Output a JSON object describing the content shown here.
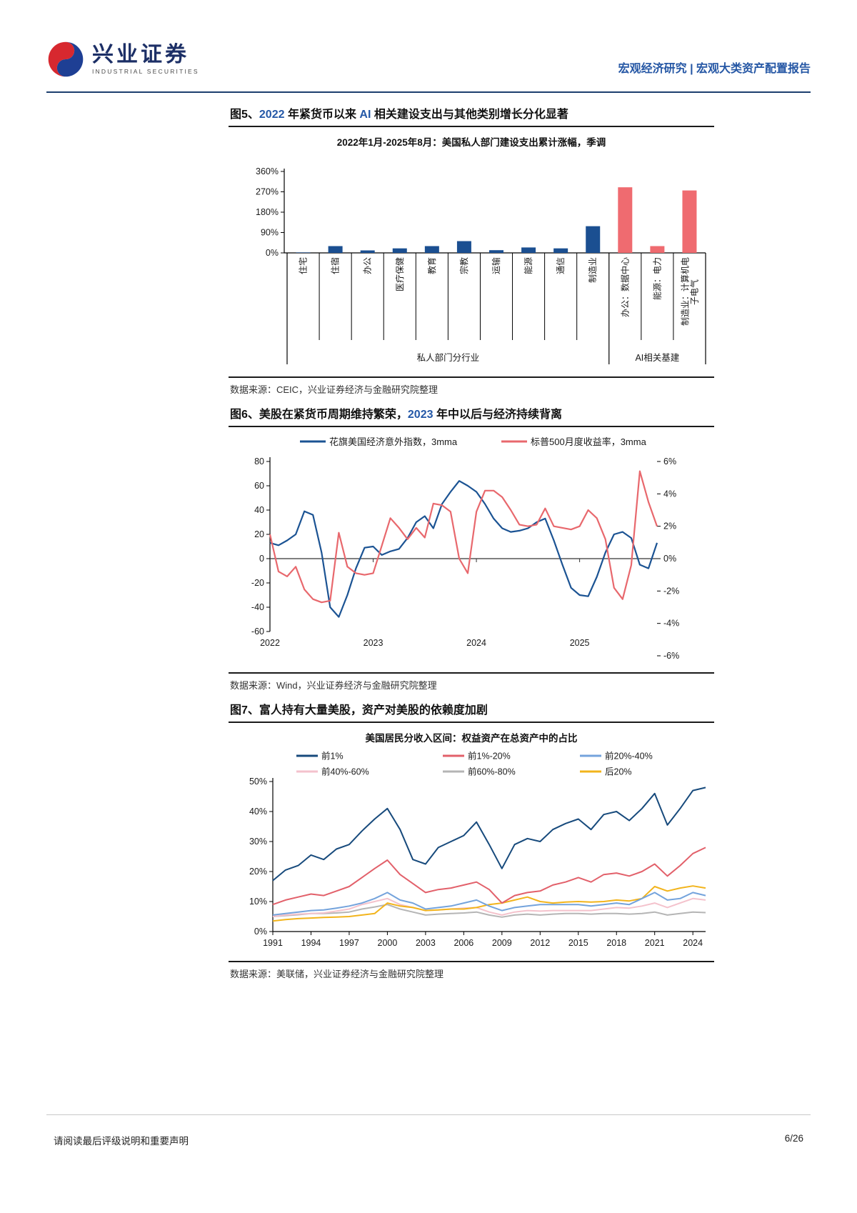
{
  "header": {
    "brand_cn": "兴业证券",
    "brand_en": "INDUSTRIAL SECURITIES",
    "report_type": "宏观经济研究 | 宏观大类资产配置报告"
  },
  "colors": {
    "accent_blue": "#2458a7",
    "bar_blue": "#1b4f91",
    "bar_red": "#ef6b70",
    "line_blue": "#1b5393",
    "line_red": "#e8686d",
    "navy": "#174a7c",
    "red": "#e2606a",
    "light_blue": "#74a3dc",
    "pink": "#f4c2cc",
    "gray": "#b5b5b5",
    "yellow": "#f2b41c",
    "logo_red": "#d7282f",
    "logo_blue": "#1e3f94"
  },
  "figure5": {
    "title_parts": [
      [
        "图5、",
        0
      ],
      [
        "2022",
        1
      ],
      [
        " 年紧货币以来 ",
        0
      ],
      [
        "AI",
        1
      ],
      [
        " 相关建设支出与其他类别增长分化显著",
        0
      ]
    ],
    "source": "数据来源：CEIC，兴业证券经济与金融研究院整理",
    "chart_data": {
      "type": "bar",
      "title": "2022年1月-2025年8月：美国私人部门建设支出累计涨幅，季调",
      "categories": [
        "住宅",
        "住宿",
        "办公",
        "医疗保健",
        "教育",
        "宗教",
        "运输",
        "能源",
        "通信",
        "制造业",
        "办公：数据中心",
        "能源：电力",
        "制造业：计算机电子电气"
      ],
      "values": [
        2,
        30,
        11,
        20,
        30,
        52,
        12,
        24,
        20,
        118,
        290,
        30,
        276
      ],
      "red_from": 10,
      "groups": [
        {
          "label": "私人部门分行业",
          "count": 10
        },
        {
          "label": "AI相关基建",
          "count": 3
        }
      ],
      "ylim": [
        0,
        360
      ],
      "yticks": [
        "0%",
        "90%",
        "180%",
        "270%",
        "360%"
      ]
    }
  },
  "figure6": {
    "title_parts": [
      [
        "图6、美股在紧货币周期维持繁荣，",
        0
      ],
      [
        "2023",
        1
      ],
      [
        " 年中以后与经济持续背离",
        0
      ]
    ],
    "source": "数据来源：Wind，兴业证券经济与金融研究院整理",
    "chart_data": {
      "type": "line",
      "x_labels": [
        "2022",
        "2023",
        "2024",
        "2025"
      ],
      "left_axis": {
        "min": -60,
        "max": 80,
        "ticks": [
          80,
          60,
          40,
          20,
          0,
          -20,
          -40,
          -60
        ]
      },
      "right_axis": {
        "min": -6,
        "max": 6,
        "ticks": [
          "6%",
          "4%",
          "2%",
          "0%",
          "-2%",
          "-4%",
          "-6%"
        ]
      },
      "series": [
        {
          "name": "花旗美国经济意外指数，3mma",
          "axis": "left",
          "color": "#1b5393",
          "values": [
            13,
            11,
            15,
            20,
            39,
            36,
            5,
            -40,
            -48,
            -30,
            -8,
            9,
            10,
            3,
            6,
            8,
            17,
            30,
            35,
            25,
            45,
            55,
            64,
            60,
            55,
            45,
            33,
            25,
            22,
            23,
            25,
            30,
            33,
            15,
            -5,
            -24,
            -30,
            -31,
            -15,
            5,
            20,
            22,
            17,
            -5,
            -8,
            13
          ]
        },
        {
          "name": "标普500月度收益率，3mma",
          "axis": "right",
          "color": "#e8686d",
          "values": [
            1.5,
            -0.8,
            -1.1,
            -0.5,
            -1.9,
            -2.5,
            -2.7,
            -2.6,
            1.6,
            -0.5,
            -0.9,
            -1.0,
            -0.9,
            0.8,
            2.5,
            1.9,
            1.2,
            1.9,
            1.3,
            3.4,
            3.3,
            2.9,
            0.0,
            -0.9,
            2.9,
            4.2,
            4.2,
            3.8,
            3.0,
            2.1,
            2.0,
            2.1,
            3.1,
            2.0,
            1.9,
            1.8,
            2.0,
            3.0,
            2.5,
            1.2,
            -1.8,
            -2.5,
            -0.4,
            5.4,
            3.5,
            2.0
          ]
        }
      ]
    }
  },
  "figure7": {
    "title_parts": [
      [
        "图7、富人持有大量美股，资产对美股的依赖度加剧",
        0
      ]
    ],
    "source": "数据来源：美联储，兴业证券经济与金融研究院整理",
    "chart_data": {
      "type": "line",
      "title": "美国居民分收入区间：权益资产在总资产中的占比",
      "year_start": 1991,
      "year_end": 2025,
      "x_tick_years": [
        1991,
        1994,
        1997,
        2000,
        2003,
        2006,
        2009,
        2012,
        2015,
        2018,
        2021,
        2024
      ],
      "ylim": [
        0,
        50
      ],
      "yticks": [
        "0%",
        "10%",
        "20%",
        "30%",
        "40%",
        "50%"
      ],
      "draw_order": [
        4,
        3,
        5,
        2,
        1,
        0
      ],
      "series": [
        {
          "name": "前1%",
          "color": "#174a7c",
          "values": [
            17,
            20.5,
            22,
            25.5,
            24,
            27.5,
            29,
            33.5,
            37.5,
            41,
            34,
            24,
            22.5,
            28,
            30,
            32,
            36.5,
            29,
            21,
            29,
            31,
            30,
            34,
            36,
            37.5,
            34,
            39,
            40,
            37,
            41,
            46,
            35.5,
            41,
            47,
            48
          ]
        },
        {
          "name": "前1%-20%",
          "color": "#e2606a",
          "values": [
            9,
            10.5,
            11.5,
            12.5,
            12,
            13.5,
            15,
            18,
            21,
            23.8,
            19,
            16,
            13,
            14,
            14.5,
            15.5,
            16.5,
            14,
            9.5,
            12,
            13,
            13.5,
            15.5,
            16.5,
            18,
            16.5,
            19,
            19.5,
            18.5,
            20,
            22.5,
            18.5,
            22,
            26,
            28
          ]
        },
        {
          "name": "前20%-40%",
          "color": "#74a3dc",
          "values": [
            5.5,
            6,
            6.5,
            7,
            7.2,
            7.8,
            8.5,
            9.5,
            11,
            13,
            10.5,
            9.5,
            7.5,
            8,
            8.5,
            9.5,
            10.5,
            8.5,
            7,
            8,
            8.5,
            9,
            9,
            9,
            9,
            8.5,
            9,
            9.5,
            9,
            11,
            13,
            10.5,
            11,
            13,
            12
          ]
        },
        {
          "name": "前40%-60%",
          "color": "#f4c2cc",
          "values": [
            5,
            5.5,
            5.8,
            6,
            6.2,
            6.8,
            7.5,
            9,
            10,
            11,
            9,
            8,
            7,
            7.2,
            7.5,
            7.8,
            8,
            6.5,
            5.5,
            6.5,
            7,
            6.8,
            7,
            7,
            7,
            7,
            7.5,
            8,
            7.8,
            8.5,
            9.5,
            8,
            9.5,
            11,
            10.5
          ]
        },
        {
          "name": "前60%-80%",
          "color": "#b5b5b5",
          "values": [
            5,
            5.3,
            5.6,
            6,
            6,
            6.2,
            6.5,
            7.5,
            8.2,
            9,
            7.5,
            6.5,
            5.5,
            5.8,
            6,
            6.2,
            6.5,
            5.5,
            4.8,
            5.5,
            5.8,
            5.5,
            5.8,
            6,
            6,
            5.8,
            6,
            6,
            5.8,
            6,
            6.5,
            5.5,
            6,
            6.5,
            6.3
          ]
        },
        {
          "name": "后20%",
          "color": "#f2b41c",
          "values": [
            3.5,
            4,
            4.3,
            4.5,
            4.7,
            4.8,
            5,
            5.5,
            6,
            9.5,
            8.5,
            8,
            7,
            7.2,
            7.5,
            7.5,
            8,
            9,
            9.5,
            10.5,
            11.5,
            10,
            9.5,
            9.8,
            10,
            9.8,
            10,
            10.5,
            10.2,
            11,
            15,
            13.5,
            14.5,
            15.2,
            14.5
          ]
        }
      ]
    }
  },
  "footer": {
    "disclaimer": "请阅读最后评级说明和重要声明",
    "page": "6/26"
  }
}
